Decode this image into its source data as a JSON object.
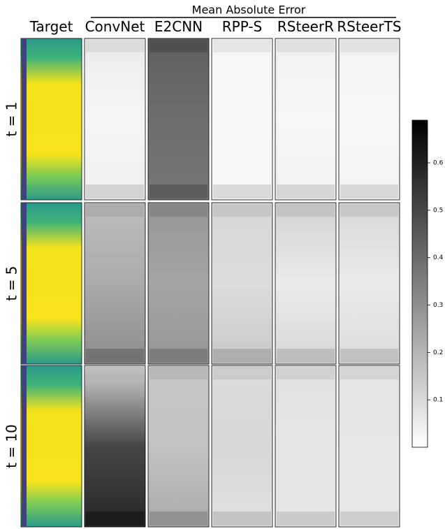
{
  "figure": {
    "supertitle": "Mean Absolute Error",
    "columns": [
      "Target",
      "ConvNet",
      "E2CNN",
      "RPP-S",
      "RSteerR",
      "RSteerTS"
    ],
    "rows": [
      "t = 1",
      "t = 5",
      "t = 10"
    ],
    "colorbar": {
      "lim": [
        0,
        0.69
      ],
      "ticks": [
        0.1,
        0.2,
        0.3,
        0.4,
        0.5,
        0.6
      ]
    }
  }
}
